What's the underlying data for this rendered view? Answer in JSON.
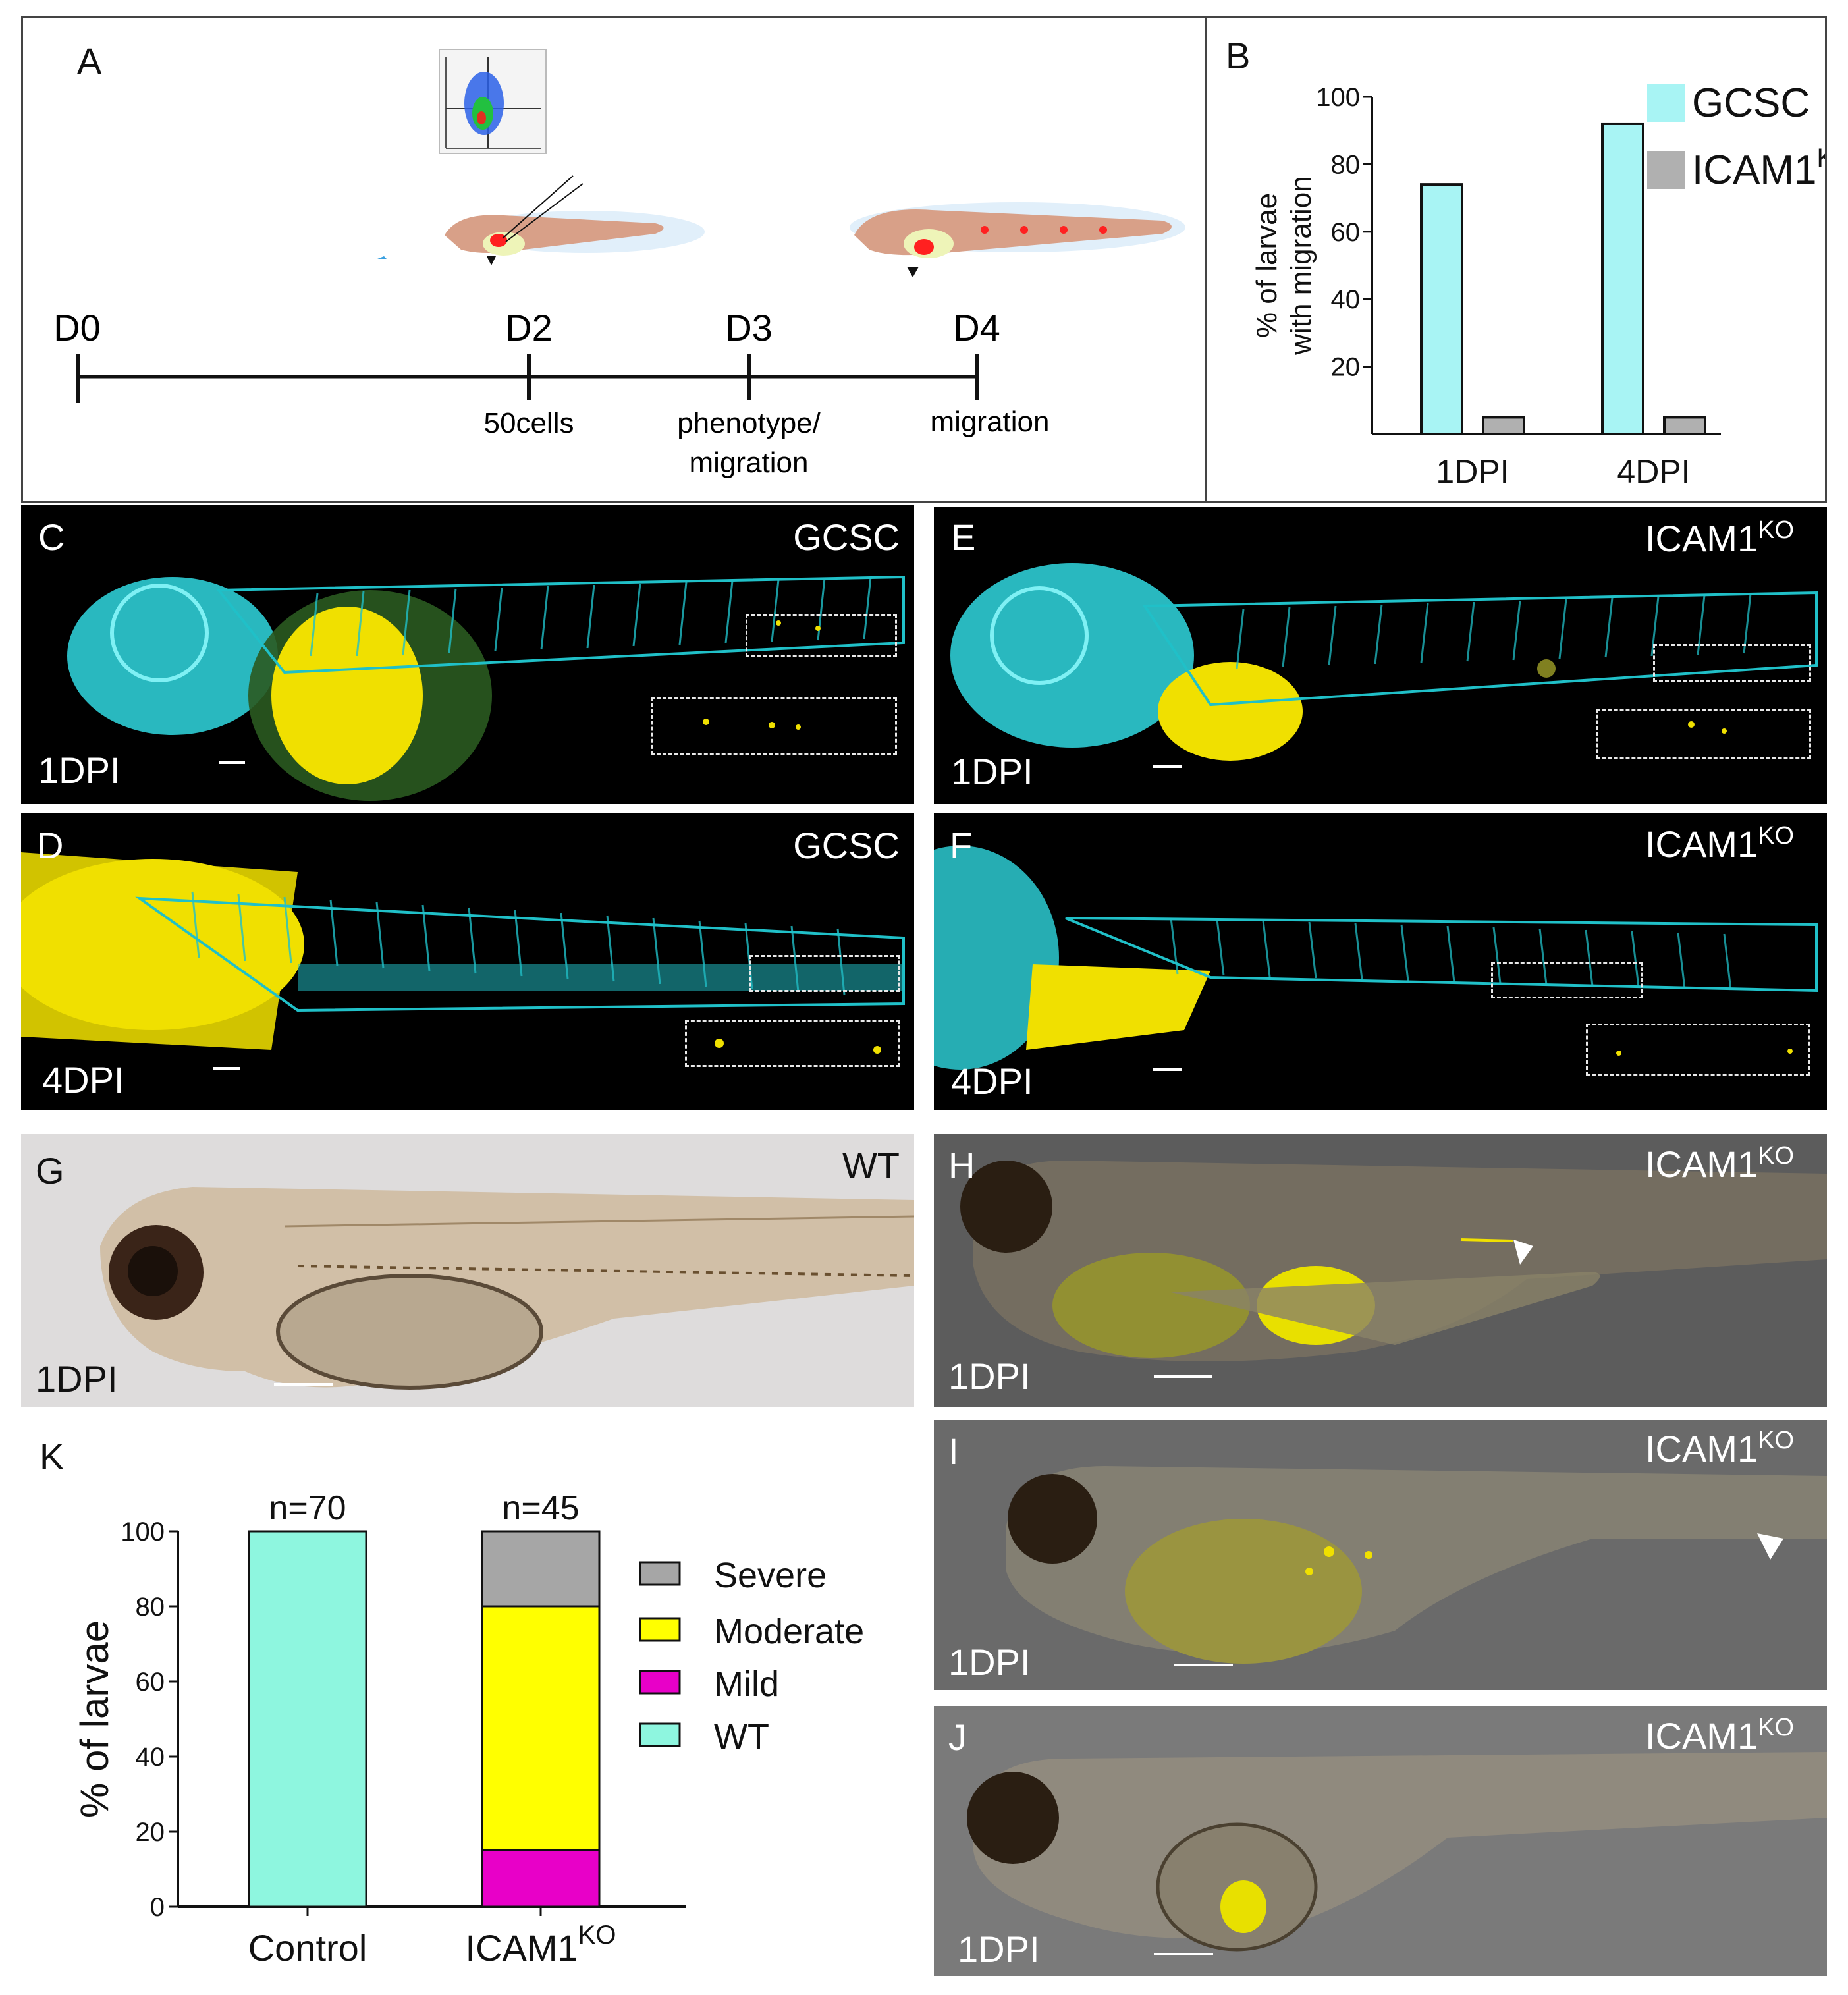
{
  "panelA": {
    "label": "A",
    "timepoints": [
      {
        "day": "D0",
        "note": ""
      },
      {
        "day": "D2",
        "note": "50cells"
      },
      {
        "day": "D3",
        "note": "phenotype/\nmigration"
      },
      {
        "day": "D4",
        "note": "migration"
      }
    ]
  },
  "panelB": {
    "label": "B",
    "chart_data": {
      "type": "bar",
      "categories": [
        "1DPI",
        "4DPI"
      ],
      "series": [
        {
          "name": "GCSC",
          "values": [
            74,
            92
          ]
        },
        {
          "name": "ICAM1",
          "name_sup": "KO",
          "values": [
            5,
            5
          ]
        }
      ],
      "ylabel": "% of larvae\nwith migration",
      "ylim": [
        0,
        100
      ],
      "yticks": [
        20,
        40,
        60,
        80,
        100
      ],
      "colors": {
        "GCSC": "#a8f4f4",
        "ICAM1KO": "#b0b0b0"
      }
    }
  },
  "imagePanels": {
    "C": {
      "label": "C",
      "condition": "GCSC",
      "sup": "",
      "time": "1DPI"
    },
    "D": {
      "label": "D",
      "condition": "GCSC",
      "sup": "",
      "time": "4DPI"
    },
    "E": {
      "label": "E",
      "condition": "ICAM1",
      "sup": "KO",
      "time": "1DPI"
    },
    "F": {
      "label": "F",
      "condition": "ICAM1",
      "sup": "KO",
      "time": "4DPI"
    },
    "G": {
      "label": "G",
      "condition": "WT",
      "sup": "",
      "time": "1DPI"
    },
    "H": {
      "label": "H",
      "condition": "ICAM1",
      "sup": "KO",
      "time": "1DPI"
    },
    "I": {
      "label": "I",
      "condition": "ICAM1",
      "sup": "KO",
      "time": "1DPI"
    },
    "J": {
      "label": "J",
      "condition": "ICAM1",
      "sup": "KO",
      "time": "1DPI"
    }
  },
  "panelK": {
    "label": "K",
    "chart_data": {
      "type": "bar",
      "stacked": true,
      "categories": [
        "Control",
        "ICAM1KO"
      ],
      "category_labels": [
        {
          "text": "Control",
          "sup": ""
        },
        {
          "text": "ICAM1",
          "sup": "KO"
        }
      ],
      "n_labels": [
        "n=70",
        "n=45"
      ],
      "series": [
        {
          "name": "WT",
          "values": [
            100,
            0
          ]
        },
        {
          "name": "Mild",
          "values": [
            0,
            15
          ]
        },
        {
          "name": "Moderate",
          "values": [
            0,
            65
          ]
        },
        {
          "name": "Severe",
          "values": [
            0,
            20
          ]
        }
      ],
      "legend_order": [
        "Severe",
        "Moderate",
        "Mild",
        "WT"
      ],
      "ylabel": "% of larvae",
      "ylim": [
        0,
        100
      ],
      "yticks": [
        0,
        20,
        40,
        60,
        80,
        100
      ],
      "colors": {
        "WT": "#8ef6df",
        "Mild": "#e800c8",
        "Moderate": "#ffff00",
        "Severe": "#a6a6a6"
      }
    }
  }
}
